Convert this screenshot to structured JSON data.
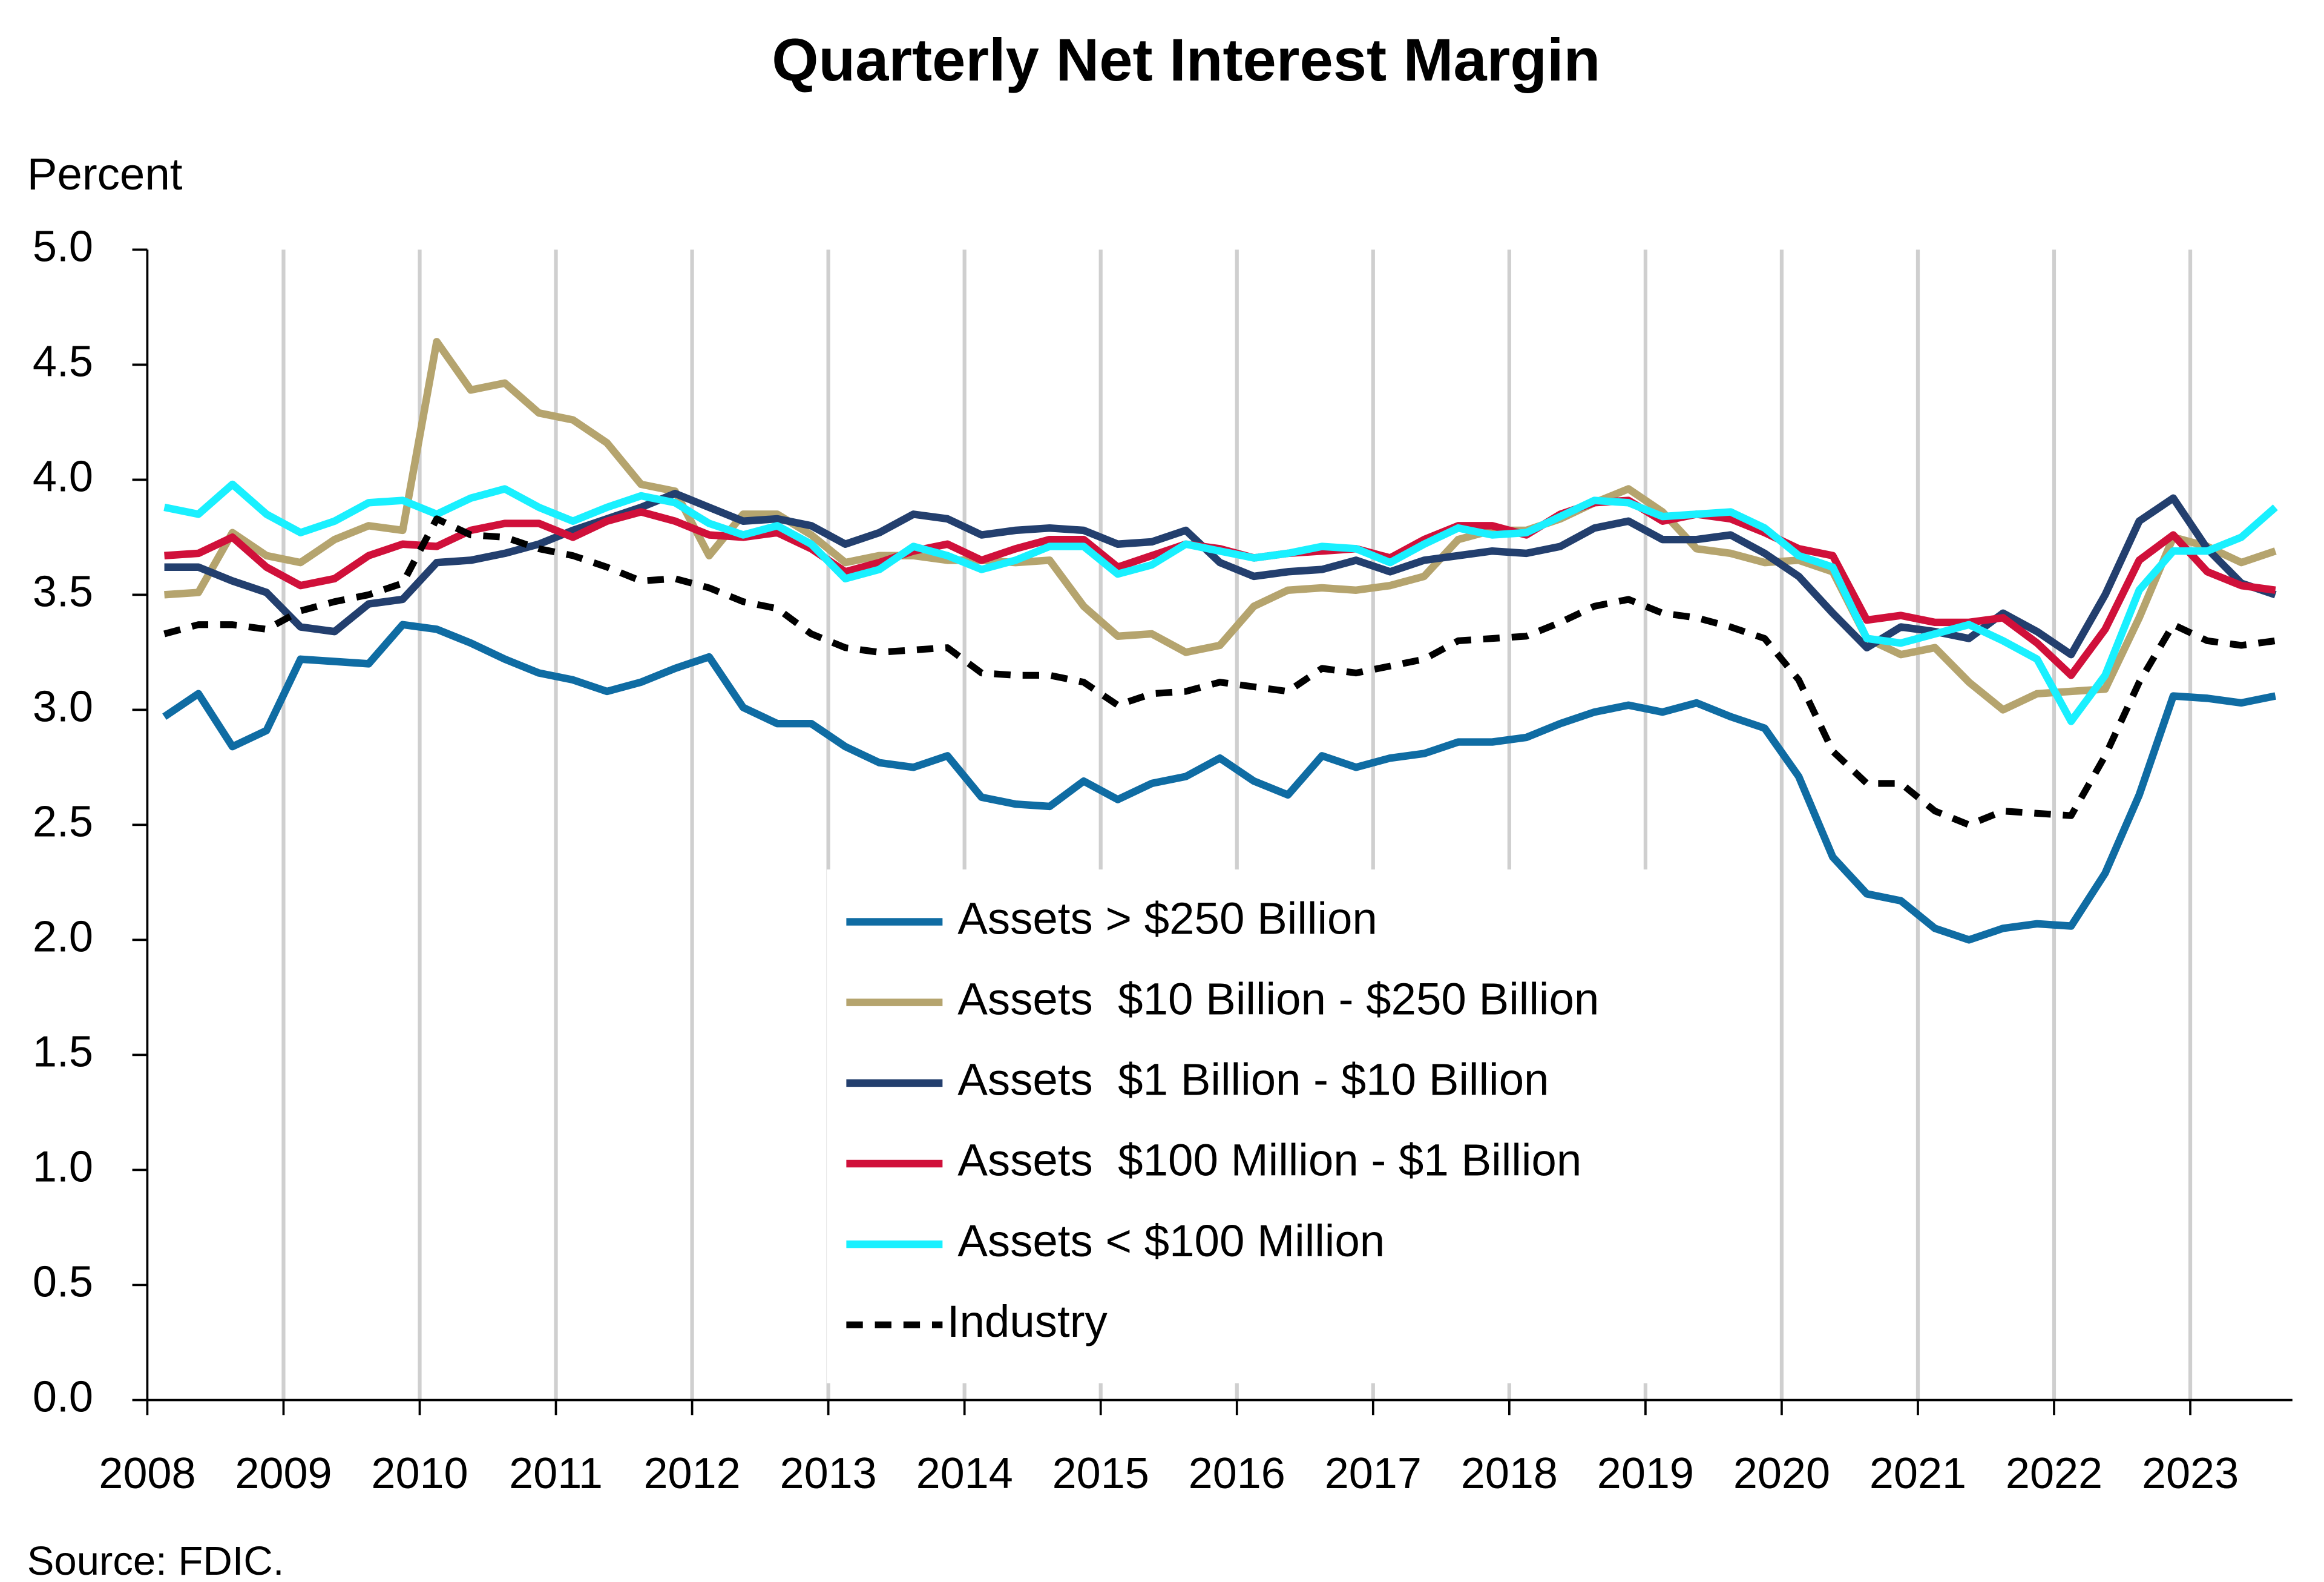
{
  "chart_data": {
    "type": "line",
    "title": "Quarterly Net Interest Margin",
    "y_label": "Percent",
    "source": "Source: FDIC.",
    "x": [
      2008.125,
      2008.375,
      2008.625,
      2008.875,
      2009.125,
      2009.375,
      2009.625,
      2009.875,
      2010.125,
      2010.375,
      2010.625,
      2010.875,
      2011.125,
      2011.375,
      2011.625,
      2011.875,
      2012.125,
      2012.375,
      2012.625,
      2012.875,
      2013.125,
      2013.375,
      2013.625,
      2013.875,
      2014.125,
      2014.375,
      2014.625,
      2014.875,
      2015.125,
      2015.375,
      2015.625,
      2015.875,
      2016.125,
      2016.375,
      2016.625,
      2016.875,
      2017.125,
      2017.375,
      2017.625,
      2017.875,
      2018.125,
      2018.375,
      2018.625,
      2018.875,
      2019.125,
      2019.375,
      2019.625,
      2019.875,
      2020.125,
      2020.375,
      2020.625,
      2020.875,
      2021.125,
      2021.375,
      2021.625,
      2021.875,
      2022.125,
      2022.375,
      2022.625,
      2022.875,
      2023.125,
      2023.375,
      2023.625
    ],
    "xlim": [
      2008,
      2023.75
    ],
    "xticks": [
      2008,
      2009,
      2010,
      2011,
      2012,
      2013,
      2014,
      2015,
      2016,
      2017,
      2018,
      2019,
      2020,
      2021,
      2022,
      2023
    ],
    "ylim": [
      0,
      5
    ],
    "yticks": [
      {
        "value": 0,
        "label": "0.0"
      },
      {
        "value": 0.5,
        "label": "0.5"
      },
      {
        "value": 1,
        "label": "1.0"
      },
      {
        "value": 1.5,
        "label": "1.5"
      },
      {
        "value": 2,
        "label": "2.0"
      },
      {
        "value": 2.5,
        "label": "2.5"
      },
      {
        "value": 3,
        "label": "3.0"
      },
      {
        "value": 3.5,
        "label": "3.5"
      },
      {
        "value": 4,
        "label": "4.0"
      },
      {
        "value": 4.5,
        "label": "4.5"
      },
      {
        "value": 5,
        "label": "5.0"
      }
    ],
    "grid": "x",
    "legend_position": "center",
    "series": [
      {
        "name": "Assets > $250 Billion",
        "color": "#0f6ca3",
        "dashed": false,
        "values": [
          2.97,
          3.07,
          2.84,
          2.91,
          3.22,
          3.21,
          3.2,
          3.37,
          3.35,
          3.29,
          3.22,
          3.16,
          3.13,
          3.08,
          3.12,
          3.18,
          3.23,
          3.01,
          2.94,
          2.94,
          2.84,
          2.77,
          2.75,
          2.8,
          2.62,
          2.59,
          2.58,
          2.69,
          2.61,
          2.68,
          2.71,
          2.79,
          2.69,
          2.63,
          2.8,
          2.75,
          2.79,
          2.81,
          2.86,
          2.86,
          2.88,
          2.94,
          2.99,
          3.02,
          2.99,
          3.03,
          2.97,
          2.92,
          2.71,
          2.36,
          2.2,
          2.17,
          2.05,
          2.0,
          2.05,
          2.07,
          2.06,
          2.29,
          2.63,
          3.06,
          3.05,
          3.03,
          3.06
        ]
      },
      {
        "name": "Assets  $10 Billion - $250 Billion",
        "color": "#b5a46e",
        "dashed": false,
        "values": [
          3.5,
          3.51,
          3.77,
          3.67,
          3.64,
          3.74,
          3.8,
          3.78,
          4.6,
          4.39,
          4.42,
          4.29,
          4.26,
          4.16,
          3.98,
          3.95,
          3.67,
          3.85,
          3.85,
          3.76,
          3.64,
          3.67,
          3.67,
          3.65,
          3.65,
          3.64,
          3.65,
          3.45,
          3.32,
          3.33,
          3.25,
          3.28,
          3.45,
          3.52,
          3.53,
          3.52,
          3.54,
          3.58,
          3.74,
          3.78,
          3.78,
          3.83,
          3.9,
          3.96,
          3.86,
          3.7,
          3.68,
          3.64,
          3.65,
          3.6,
          3.31,
          3.24,
          3.27,
          3.12,
          3.0,
          3.07,
          3.08,
          3.09,
          3.4,
          3.75,
          3.71,
          3.64,
          3.69
        ]
      },
      {
        "name": "Assets  $1 Billion - $10 Billion",
        "color": "#233f6e",
        "dashed": false,
        "values": [
          3.62,
          3.62,
          3.56,
          3.51,
          3.36,
          3.34,
          3.46,
          3.48,
          3.64,
          3.65,
          3.68,
          3.72,
          3.78,
          3.83,
          3.88,
          3.94,
          3.88,
          3.82,
          3.83,
          3.8,
          3.72,
          3.77,
          3.85,
          3.83,
          3.76,
          3.78,
          3.79,
          3.78,
          3.72,
          3.73,
          3.78,
          3.64,
          3.58,
          3.6,
          3.61,
          3.65,
          3.6,
          3.65,
          3.67,
          3.69,
          3.68,
          3.71,
          3.79,
          3.82,
          3.74,
          3.74,
          3.76,
          3.68,
          3.58,
          3.42,
          3.27,
          3.36,
          3.34,
          3.31,
          3.42,
          3.34,
          3.24,
          3.5,
          3.82,
          3.92,
          3.7,
          3.55,
          3.5
        ]
      },
      {
        "name": "Assets  $100 Million - $1 Billion",
        "color": "#d0103a",
        "dashed": false,
        "values": [
          3.67,
          3.68,
          3.75,
          3.62,
          3.54,
          3.57,
          3.67,
          3.72,
          3.71,
          3.78,
          3.81,
          3.81,
          3.75,
          3.82,
          3.86,
          3.82,
          3.76,
          3.75,
          3.77,
          3.7,
          3.6,
          3.64,
          3.69,
          3.72,
          3.65,
          3.7,
          3.74,
          3.74,
          3.62,
          3.67,
          3.72,
          3.7,
          3.66,
          3.68,
          3.69,
          3.7,
          3.66,
          3.74,
          3.8,
          3.8,
          3.76,
          3.85,
          3.9,
          3.91,
          3.82,
          3.85,
          3.83,
          3.77,
          3.7,
          3.67,
          3.39,
          3.41,
          3.38,
          3.38,
          3.4,
          3.29,
          3.15,
          3.35,
          3.65,
          3.76,
          3.6,
          3.54,
          3.52
        ]
      },
      {
        "name": "Assets < $100 Million",
        "color": "#19f0ff",
        "dashed": false,
        "values": [
          3.88,
          3.85,
          3.98,
          3.85,
          3.77,
          3.82,
          3.9,
          3.91,
          3.85,
          3.92,
          3.96,
          3.88,
          3.82,
          3.88,
          3.93,
          3.9,
          3.81,
          3.76,
          3.8,
          3.72,
          3.57,
          3.61,
          3.71,
          3.67,
          3.61,
          3.65,
          3.71,
          3.71,
          3.59,
          3.63,
          3.72,
          3.69,
          3.66,
          3.68,
          3.71,
          3.7,
          3.64,
          3.72,
          3.79,
          3.76,
          3.77,
          3.84,
          3.91,
          3.9,
          3.84,
          3.85,
          3.86,
          3.79,
          3.67,
          3.62,
          3.31,
          3.29,
          3.33,
          3.37,
          3.3,
          3.22,
          2.95,
          3.15,
          3.52,
          3.69,
          3.69,
          3.75,
          3.88
        ]
      },
      {
        "name": "Industry",
        "color": "#000000",
        "dashed": true,
        "values": [
          3.33,
          3.37,
          3.37,
          3.35,
          3.43,
          3.47,
          3.5,
          3.55,
          3.83,
          3.76,
          3.75,
          3.7,
          3.67,
          3.62,
          3.56,
          3.57,
          3.53,
          3.47,
          3.44,
          3.33,
          3.27,
          3.25,
          3.26,
          3.27,
          3.16,
          3.15,
          3.15,
          3.12,
          3.02,
          3.07,
          3.08,
          3.12,
          3.1,
          3.08,
          3.18,
          3.16,
          3.19,
          3.22,
          3.3,
          3.31,
          3.32,
          3.38,
          3.45,
          3.48,
          3.42,
          3.4,
          3.36,
          3.31,
          3.13,
          2.82,
          2.68,
          2.68,
          2.56,
          2.5,
          2.56,
          2.55,
          2.54,
          2.8,
          3.12,
          3.37,
          3.3,
          3.28,
          3.3
        ]
      }
    ]
  }
}
